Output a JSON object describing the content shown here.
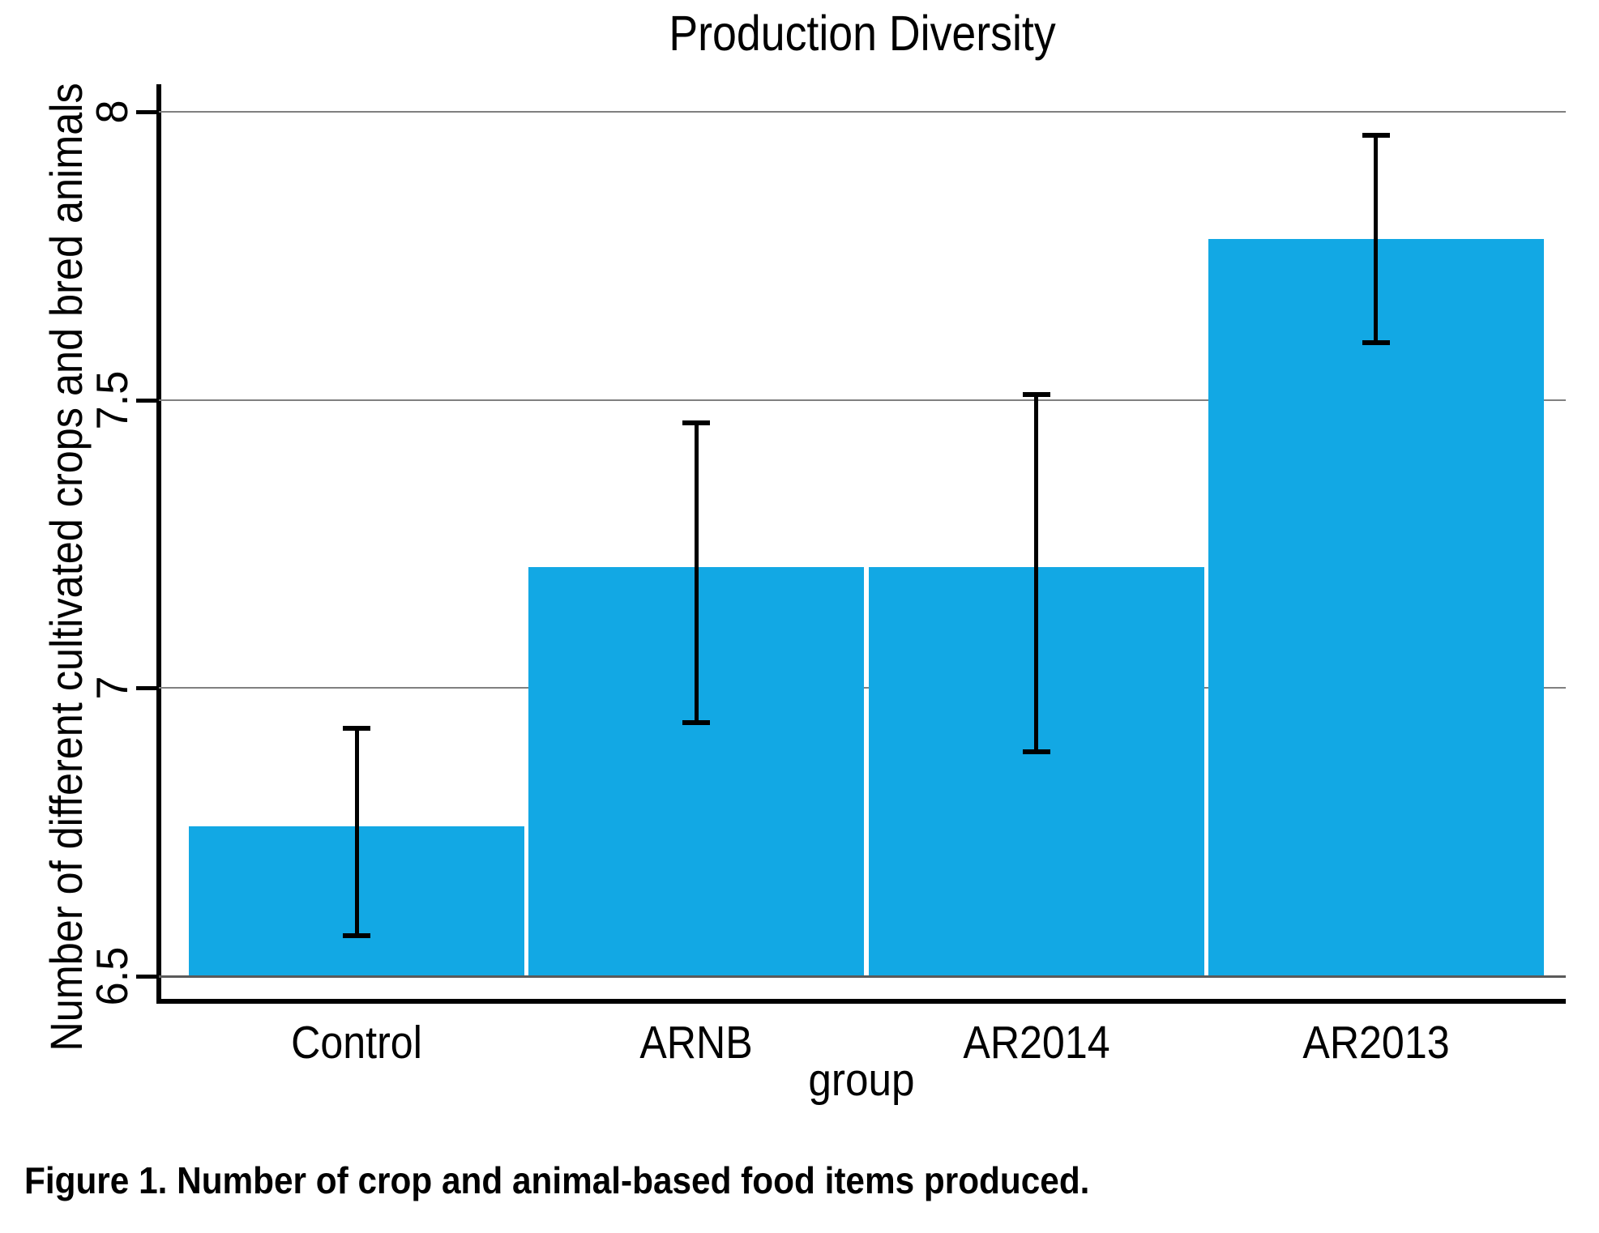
{
  "chart_data": {
    "type": "bar",
    "title": "Production Diversity",
    "xlabel": "group",
    "ylabel": "Number of different cultivated crops and bred animals",
    "caption": "Figure 1. Number of crop and animal-based food items produced.",
    "categories": [
      "Control",
      "ARNB",
      "AR2014",
      "AR2013"
    ],
    "values": [
      6.76,
      7.21,
      7.21,
      7.78
    ],
    "error_low": [
      6.57,
      6.94,
      6.89,
      7.6
    ],
    "error_high": [
      6.93,
      7.46,
      7.51,
      7.96
    ],
    "ylim": [
      6.5,
      8
    ],
    "yticks": [
      6.5,
      7,
      7.5,
      8
    ],
    "ytick_labels": [
      "6.5",
      "7",
      "7.5",
      "8"
    ],
    "bar_color": "#12A8E4",
    "grid": true,
    "legend": "none"
  }
}
